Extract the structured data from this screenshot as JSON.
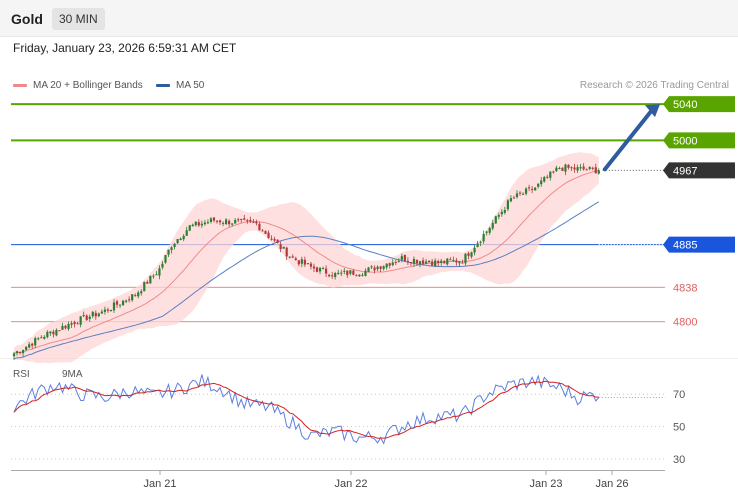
{
  "header": {
    "asset": "Gold",
    "timeframe": "30 MIN",
    "datetime": "Friday, January 23, 2026 6:59:31 AM CET"
  },
  "legend": {
    "ma20": "MA 20 + Bollinger Bands",
    "ma50": "MA 50",
    "credit": "Research © 2026 Trading Central"
  },
  "rsi_legend": {
    "rsi": "RSI",
    "ma9": "9MA"
  },
  "colors": {
    "bull": "#2e7d32",
    "bear": "#b23a3a",
    "ma20": "#f08a8a",
    "ma50": "#5b7fc4",
    "band": "#ffd6d6",
    "target": "#5aa400",
    "support": "#e06060",
    "pivot": "#1a56db",
    "price_tag": "#333333",
    "arrow": "#2f5b9f",
    "rsi": "#5b7fe0",
    "rsi_ma": "#d62020"
  },
  "chart_data": [
    {
      "type": "candlestick",
      "title": "Gold 30 MIN",
      "x_ticks": [
        "Jan 21",
        "Jan 22",
        "Jan 23",
        "Jan 26"
      ],
      "ylim": [
        4760,
        5060
      ],
      "close_anchors": [
        [
          0,
          4765
        ],
        [
          10,
          4785
        ],
        [
          20,
          4800
        ],
        [
          30,
          4812
        ],
        [
          40,
          4830
        ],
        [
          48,
          4858
        ],
        [
          52,
          4885
        ],
        [
          58,
          4905
        ],
        [
          66,
          4912
        ],
        [
          80,
          4908
        ],
        [
          86,
          4888
        ],
        [
          92,
          4870
        ],
        [
          98,
          4860
        ],
        [
          106,
          4852
        ],
        [
          116,
          4856
        ],
        [
          128,
          4870
        ],
        [
          140,
          4865
        ],
        [
          148,
          4868
        ],
        [
          156,
          4900
        ],
        [
          164,
          4935
        ],
        [
          172,
          4948
        ],
        [
          180,
          4970
        ],
        [
          188,
          4968
        ],
        [
          193,
          4967
        ]
      ],
      "levels": [
        {
          "label": "5040",
          "value": 5040,
          "kind": "target"
        },
        {
          "label": "5000",
          "value": 5000,
          "kind": "target"
        },
        {
          "label": "4967",
          "value": 4967,
          "kind": "price"
        },
        {
          "label": "4885",
          "value": 4885,
          "kind": "pivot"
        },
        {
          "label": "4838",
          "value": 4838,
          "kind": "support"
        },
        {
          "label": "4800",
          "value": 4800,
          "kind": "support"
        }
      ],
      "arrow": {
        "from": 4967,
        "to": 5040,
        "direction": "up"
      }
    },
    {
      "type": "line",
      "title": "RSI",
      "y_ticks": [
        "70",
        "50",
        "30"
      ],
      "ylim": [
        22,
        88
      ],
      "rsi_anchors": [
        [
          0,
          62
        ],
        [
          8,
          72
        ],
        [
          14,
          76
        ],
        [
          22,
          70
        ],
        [
          30,
          68
        ],
        [
          38,
          72
        ],
        [
          46,
          69
        ],
        [
          54,
          73
        ],
        [
          62,
          78
        ],
        [
          68,
          74
        ],
        [
          76,
          64
        ],
        [
          84,
          62
        ],
        [
          92,
          52
        ],
        [
          98,
          44
        ],
        [
          106,
          47
        ],
        [
          114,
          43
        ],
        [
          122,
          44
        ],
        [
          130,
          52
        ],
        [
          138,
          56
        ],
        [
          148,
          57
        ],
        [
          156,
          70
        ],
        [
          164,
          76
        ],
        [
          172,
          78
        ],
        [
          180,
          74
        ],
        [
          186,
          68
        ],
        [
          193,
          70
        ]
      ]
    }
  ]
}
